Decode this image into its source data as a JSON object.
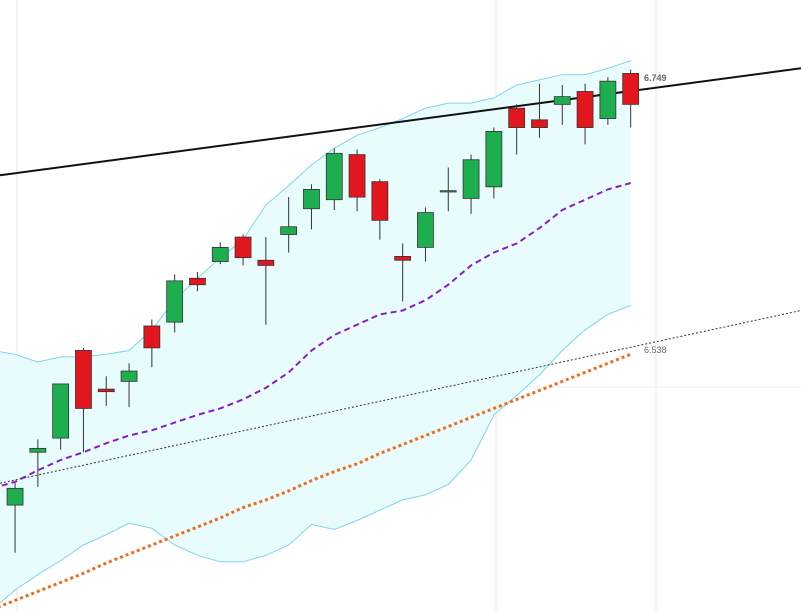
{
  "chart_data": {
    "type": "candlestick",
    "xlim": [
      0.34,
      35.47
    ],
    "ylim": [
      6.335,
      6.81
    ],
    "x": [
      1,
      2,
      3,
      4,
      5,
      6,
      7,
      8,
      9,
      10,
      11,
      12,
      13,
      14,
      15,
      16,
      17,
      18,
      19,
      20,
      21,
      22,
      23,
      24,
      25,
      26,
      27,
      28
    ],
    "open": [
      6.418,
      6.459,
      6.47,
      6.538,
      6.508,
      6.514,
      6.557,
      6.56,
      6.594,
      6.607,
      6.626,
      6.608,
      6.628,
      6.648,
      6.655,
      6.69,
      6.669,
      6.611,
      6.618,
      6.661,
      6.656,
      6.665,
      6.726,
      6.717,
      6.729,
      6.739,
      6.718,
      6.753
    ],
    "high": [
      6.435,
      6.469,
      6.512,
      6.54,
      6.518,
      6.528,
      6.562,
      6.597,
      6.599,
      6.622,
      6.628,
      6.626,
      6.657,
      6.667,
      6.695,
      6.694,
      6.671,
      6.621,
      6.649,
      6.68,
      6.69,
      6.711,
      6.729,
      6.745,
      6.744,
      6.745,
      6.75,
      6.756
    ],
    "low": [
      6.381,
      6.432,
      6.461,
      6.459,
      6.495,
      6.494,
      6.525,
      6.552,
      6.584,
      6.605,
      6.604,
      6.558,
      6.614,
      6.632,
      6.647,
      6.646,
      6.624,
      6.576,
      6.607,
      6.646,
      6.644,
      6.656,
      6.69,
      6.703,
      6.713,
      6.698,
      6.713,
      6.711
    ],
    "close": [
      6.431,
      6.462,
      6.512,
      6.493,
      6.506,
      6.522,
      6.54,
      6.592,
      6.589,
      6.618,
      6.61,
      6.604,
      6.634,
      6.663,
      6.691,
      6.657,
      6.639,
      6.608,
      6.645,
      6.662,
      6.686,
      6.708,
      6.711,
      6.711,
      6.735,
      6.711,
      6.747,
      6.729
    ],
    "up_color": "#1fae4f",
    "down_color": "#e3161d",
    "overlay_x": [
      0,
      1,
      2,
      3,
      4,
      5,
      6,
      7,
      8,
      9,
      10,
      11,
      12,
      13,
      14,
      15,
      16,
      17,
      18,
      19,
      20,
      21,
      22,
      23,
      24,
      25,
      26,
      27,
      28
    ],
    "band": {
      "upper": [
        6.538,
        6.535,
        6.529,
        6.533,
        6.533,
        6.535,
        6.538,
        6.554,
        6.577,
        6.594,
        6.61,
        6.624,
        6.651,
        6.666,
        6.682,
        6.695,
        6.705,
        6.711,
        6.718,
        6.726,
        6.73,
        6.73,
        6.734,
        6.744,
        6.748,
        6.752,
        6.752,
        6.757,
        6.763
      ],
      "lower": [
        6.337,
        6.352,
        6.364,
        6.375,
        6.387,
        6.395,
        6.404,
        6.4,
        6.387,
        6.379,
        6.374,
        6.374,
        6.379,
        6.387,
        6.403,
        6.399,
        6.406,
        6.414,
        6.422,
        6.426,
        6.434,
        6.453,
        6.488,
        6.503,
        6.519,
        6.538,
        6.554,
        6.566,
        6.573
      ],
      "color": "#7fd3ee",
      "fill": "#e8fcfd"
    },
    "overlays": [
      {
        "color": "#8a1cc7",
        "dash": "6,4",
        "width": 2,
        "values": [
          6.431,
          6.436,
          6.445,
          6.453,
          6.459,
          6.466,
          6.472,
          6.476,
          6.482,
          6.488,
          6.493,
          6.5,
          6.509,
          6.521,
          6.538,
          6.55,
          6.558,
          6.566,
          6.569,
          6.577,
          6.589,
          6.604,
          6.614,
          6.621,
          6.633,
          6.647,
          6.655,
          6.663,
          6.668
        ]
      },
      {
        "color": "#f26b1d",
        "dash": "3,3",
        "width": 3,
        "values": [
          6.337,
          6.344,
          6.351,
          6.358,
          6.365,
          6.373,
          6.38,
          6.387,
          6.394,
          6.401,
          6.408,
          6.416,
          6.422,
          6.429,
          6.437,
          6.444,
          6.45,
          6.458,
          6.465,
          6.472,
          6.479,
          6.486,
          6.493,
          6.5,
          6.507,
          6.514,
          6.521,
          6.528,
          6.535
        ]
      }
    ],
    "trendlines": [
      {
        "color": "#111111",
        "dash": "none",
        "width": 2,
        "x": [
          0.34,
          35.47
        ],
        "values": [
          6.674,
          6.757
        ]
      },
      {
        "color": "#333333",
        "dash": "2,2",
        "width": 1,
        "x": [
          0.34,
          35.47
        ],
        "values": [
          6.435,
          6.569
        ]
      }
    ],
    "price_labels": [
      6.749,
      6.538
    ]
  }
}
